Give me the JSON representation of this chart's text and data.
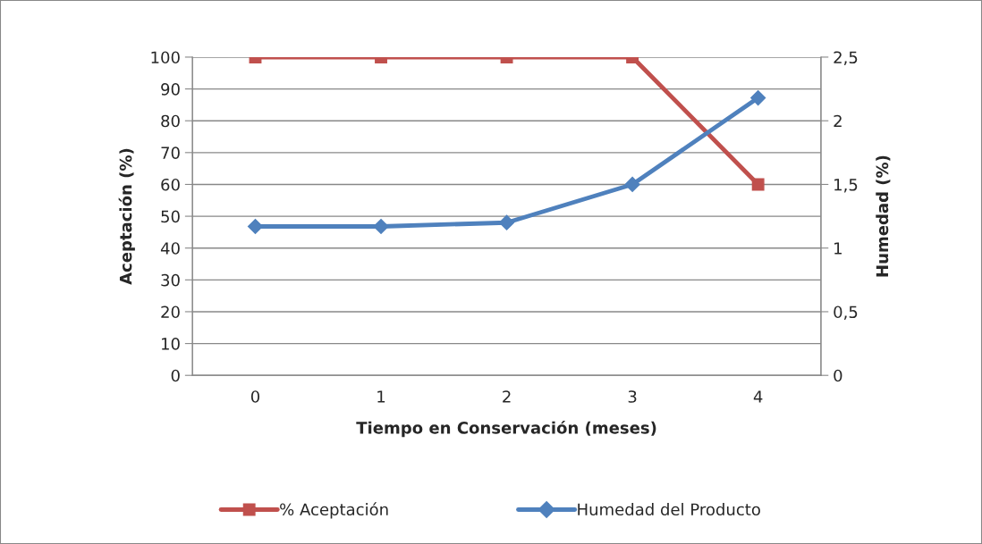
{
  "chart_data": {
    "type": "line",
    "xlabel": "Tiempo en Conservación (meses)",
    "ylabel": "Aceptación (%)",
    "y2label": "Humedad (%)",
    "categories": [
      "0",
      "1",
      "2",
      "3",
      "4"
    ],
    "series": [
      {
        "name": "% Aceptación",
        "color": "#c0504d",
        "marker": "square",
        "values": [
          100,
          100,
          100,
          100,
          60
        ]
      },
      {
        "name": "Humedad del Producto",
        "color": "#4f81bd",
        "marker": "diamond",
        "axis": "y2",
        "values": [
          1.17,
          1.17,
          1.2,
          1.5,
          2.18
        ]
      }
    ],
    "ylim": [
      0,
      100
    ],
    "yticks": [
      0,
      10,
      20,
      30,
      40,
      50,
      60,
      70,
      80,
      90,
      100
    ],
    "y2lim": [
      0,
      2.5
    ],
    "y2ticks": [
      0,
      {
        "value": 0.5,
        "label": "0,5"
      },
      1,
      {
        "value": 1.5,
        "label": "1,5"
      },
      2,
      {
        "value": 2.5,
        "label": "2,5"
      }
    ],
    "grid": "y",
    "legend": "bottom",
    "line_style": "solid"
  }
}
